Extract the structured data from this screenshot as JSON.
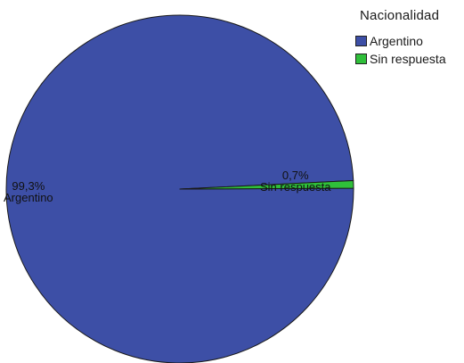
{
  "chart_data": {
    "type": "pie",
    "legend_title": "Nacionalidad",
    "legend_position": "top-right",
    "categories": [
      "Argentino",
      "Sin respuesta"
    ],
    "values": [
      99.3,
      0.7
    ],
    "value_labels": [
      "99,3%",
      "0,7%"
    ],
    "colors": [
      "#3d4fa6",
      "#2fbf3a"
    ]
  }
}
